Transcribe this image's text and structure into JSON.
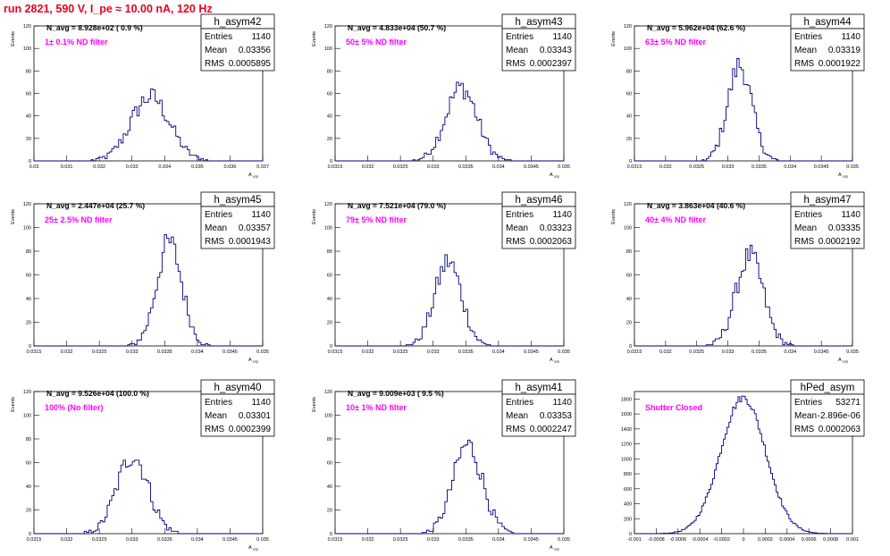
{
  "page": {
    "title": "run 2821,   590 V, I_pe ≈ 10.00 nA, 120 Hz"
  },
  "stats_labels": {
    "entries": "Entries",
    "mean": "Mean",
    "rms": "RMS"
  },
  "chart_data": [
    {
      "type": "histogram",
      "name": "h_asym42",
      "n_avg": "N_avg = 8.928e+02 ( 0.9 %)",
      "filter": "1± 0.1% ND filter",
      "entries": "1140",
      "mean": "0.03356",
      "rms": "0.0005895",
      "xlabel": "A_uzp",
      "ylabel": "Events",
      "xlim": [
        0.03,
        0.037
      ],
      "ylim": [
        0,
        120
      ],
      "xticks": [
        "0.03",
        "0.031",
        "0.032",
        "0.033",
        "0.034",
        "0.035",
        "0.036",
        "0.037"
      ],
      "yticks": [
        "0",
        "20",
        "40",
        "60",
        "80",
        "100",
        "120"
      ],
      "mu": 0.03356,
      "sigma": 0.00059,
      "peak": 57,
      "bins": 100
    },
    {
      "type": "histogram",
      "name": "h_asym43",
      "n_avg": "N_avg = 4.833e+04 (50.7 %)",
      "filter": "50± 5% ND filter",
      "entries": "1140",
      "mean": "0.03343",
      "rms": "0.0002397",
      "xlabel": "A_uzp",
      "ylabel": "Events",
      "xlim": [
        0.0315,
        0.035
      ],
      "ylim": [
        0,
        120
      ],
      "xticks": [
        "0.0315",
        "0.032",
        "0.0325",
        "0.033",
        "0.0335",
        "0.034",
        "0.0345",
        "0.035"
      ],
      "yticks": [
        "0",
        "20",
        "40",
        "60",
        "80",
        "100",
        "120"
      ],
      "mu": 0.03343,
      "sigma": 0.00024,
      "peak": 65,
      "bins": 100
    },
    {
      "type": "histogram",
      "name": "h_asym44",
      "n_avg": "N_avg = 5.962e+04 (62.6 %)",
      "filter": "63± 5% ND filter",
      "entries": "1140",
      "mean": "0.03319",
      "rms": "0.0001922",
      "xlabel": "A_uzp",
      "ylabel": "Events",
      "xlim": [
        0.0315,
        0.035
      ],
      "ylim": [
        0,
        120
      ],
      "xticks": [
        "0.0315",
        "0.032",
        "0.0325",
        "0.033",
        "0.0335",
        "0.034",
        "0.0345",
        "0.035"
      ],
      "yticks": [
        "0",
        "20",
        "40",
        "60",
        "80",
        "100",
        "120"
      ],
      "mu": 0.03319,
      "sigma": 0.000192,
      "peak": 85,
      "bins": 100
    },
    {
      "type": "histogram",
      "name": "h_asym45",
      "n_avg": "N_avg = 2.447e+04 (25.7 %)",
      "filter": "25± 2.5% ND filter",
      "entries": "1140",
      "mean": "0.03357",
      "rms": "0.0001943",
      "xlabel": "A_uzp",
      "ylabel": "Events",
      "xlim": [
        0.0315,
        0.035
      ],
      "ylim": [
        0,
        120
      ],
      "xticks": [
        "0.0315",
        "0.032",
        "0.0325",
        "0.033",
        "0.0335",
        "0.034",
        "0.0345",
        "0.035"
      ],
      "yticks": [
        "0",
        "20",
        "40",
        "60",
        "80",
        "100",
        "120"
      ],
      "mu": 0.03357,
      "sigma": 0.000194,
      "peak": 87,
      "bins": 100
    },
    {
      "type": "histogram",
      "name": "h_asym46",
      "n_avg": "N_avg = 7.521e+04 (79.0 %)",
      "filter": "79± 5% ND filter",
      "entries": "1140",
      "mean": "0.03323",
      "rms": "0.0002063",
      "xlabel": "A_uzp",
      "ylabel": "Events",
      "xlim": [
        0.0315,
        0.035
      ],
      "ylim": [
        0,
        120
      ],
      "xticks": [
        "0.0315",
        "0.032",
        "0.0325",
        "0.033",
        "0.0335",
        "0.034",
        "0.0345",
        "0.035"
      ],
      "yticks": [
        "0",
        "20",
        "40",
        "60",
        "80",
        "100",
        "120"
      ],
      "mu": 0.03323,
      "sigma": 0.000206,
      "peak": 71,
      "bins": 100
    },
    {
      "type": "histogram",
      "name": "h_asym47",
      "n_avg": "N_avg = 3.863e+04 (40.6 %)",
      "filter": "40± 4% ND filter",
      "entries": "1140",
      "mean": "0.03335",
      "rms": "0.0002192",
      "xlabel": "A_uzp",
      "ylabel": "Events",
      "xlim": [
        0.0315,
        0.035
      ],
      "ylim": [
        0,
        120
      ],
      "xticks": [
        "0.0315",
        "0.032",
        "0.0325",
        "0.033",
        "0.0335",
        "0.034",
        "0.0345",
        "0.035"
      ],
      "yticks": [
        "0",
        "20",
        "40",
        "60",
        "80",
        "100",
        "120"
      ],
      "mu": 0.03335,
      "sigma": 0.000219,
      "peak": 76,
      "bins": 100
    },
    {
      "type": "histogram",
      "name": "h_asym40",
      "n_avg": "N_avg = 9.526e+04 (100.0 %)",
      "filter": "100% (No filter)",
      "entries": "1140",
      "mean": "0.03301",
      "rms": "0.0002399",
      "xlabel": "A_uzp",
      "ylabel": "Events",
      "xlim": [
        0.0315,
        0.035
      ],
      "ylim": [
        0,
        120
      ],
      "xticks": [
        "0.0315",
        "0.032",
        "0.0325",
        "0.033",
        "0.0335",
        "0.034",
        "0.0345",
        "0.035"
      ],
      "yticks": [
        "0",
        "20",
        "40",
        "60",
        "80",
        "100",
        "120"
      ],
      "mu": 0.03301,
      "sigma": 0.00024,
      "peak": 66,
      "bins": 100
    },
    {
      "type": "histogram",
      "name": "h_asym41",
      "n_avg": "N_avg = 9.009e+03 ( 9.5 %)",
      "filter": "10± 1% ND filter",
      "entries": "1140",
      "mean": "0.03353",
      "rms": "0.0002247",
      "xlabel": "A_uzp",
      "ylabel": "Events",
      "xlim": [
        0.0315,
        0.035
      ],
      "ylim": [
        0,
        120
      ],
      "xticks": [
        "0.0315",
        "0.032",
        "0.0325",
        "0.033",
        "0.0335",
        "0.034",
        "0.0345",
        "0.035"
      ],
      "yticks": [
        "0",
        "20",
        "40",
        "60",
        "80",
        "100",
        "120"
      ],
      "mu": 0.03353,
      "sigma": 0.000225,
      "peak": 75,
      "bins": 100
    },
    {
      "type": "histogram",
      "name": "hPed_asym",
      "n_avg": "",
      "filter": "Shutter Closed",
      "entries": "53271",
      "mean": "-2.896e-06",
      "rms": "0.0002063",
      "xlabel": "",
      "ylabel": "",
      "xlim": [
        -0.001,
        0.001
      ],
      "ylim": [
        0,
        1900
      ],
      "xticks": [
        "-0.001",
        "-0.0008",
        "-0.0006",
        "-0.0004",
        "-0.0002",
        "0",
        "0.0002",
        "0.0004",
        "0.0006",
        "0.0008",
        "0.001"
      ],
      "yticks": [
        "0",
        "200",
        "400",
        "600",
        "800",
        "1000",
        "1200",
        "1400",
        "1600",
        "1800"
      ],
      "mu": -3e-06,
      "sigma": 0.000206,
      "peak": 1820,
      "bins": 120
    }
  ]
}
